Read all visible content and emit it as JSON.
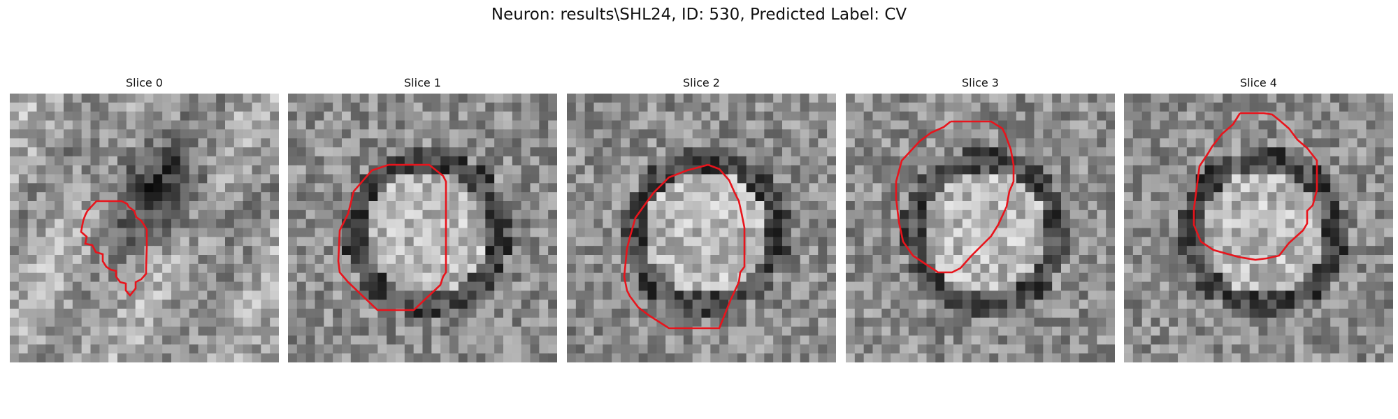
{
  "figure": {
    "title": "Neuron: results\\SHL24, ID: 530, Predicted Label: CV"
  },
  "panels": [
    {
      "title": "Slice 0",
      "seed": 11,
      "pattern": "irregular"
    },
    {
      "title": "Slice 1",
      "seed": 23,
      "pattern": "ring"
    },
    {
      "title": "Slice 2",
      "seed": 37,
      "pattern": "ring"
    },
    {
      "title": "Slice 3",
      "seed": 41,
      "pattern": "ring"
    },
    {
      "title": "Slice 4",
      "seed": 53,
      "pattern": "ring"
    }
  ],
  "contour_color": "#e8141c",
  "colormap": "grayscale",
  "grid_size": 30
}
